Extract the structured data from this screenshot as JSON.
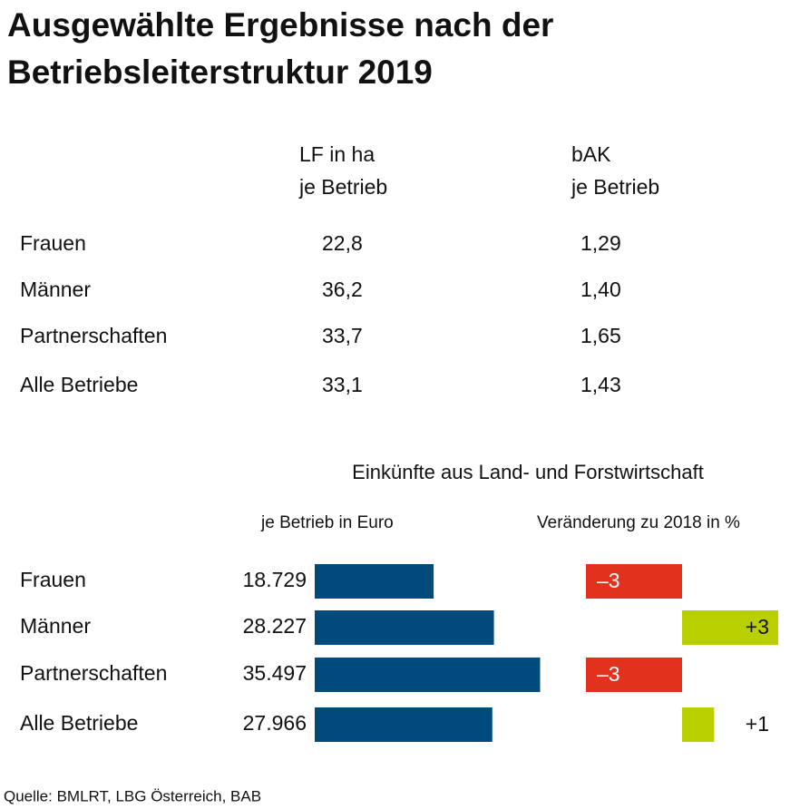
{
  "title": [
    "Ausgewählte Ergebnisse nach der",
    "Betriebsleiterstruktur 2019"
  ],
  "table": {
    "columns": [
      [
        "LF in ha",
        "je Betrieb"
      ],
      [
        "bAK",
        "je Betrieb"
      ]
    ],
    "rows": [
      [
        "Frauen",
        "22,8",
        "1,29"
      ],
      [
        "Männer",
        "36,2",
        "1,40"
      ],
      [
        "Partnerschaften",
        "33,7",
        "1,65"
      ],
      [
        "Alle Betriebe",
        "33,1",
        "1,43"
      ]
    ]
  },
  "section_title": "Einkünfte aus Land- und Forstwirtschaft",
  "chart_data": [
    {
      "type": "bar",
      "title": "je Betrieb in Euro",
      "categories": [
        "Frauen",
        "Männer",
        "Partnerschaften",
        "Alle Betriebe"
      ],
      "values": [
        18729,
        28227,
        35497,
        27966
      ],
      "value_labels": [
        "18.729",
        "28.227",
        "35.497",
        "27.966"
      ],
      "color": "#004b7c",
      "xlim": [
        0,
        40000
      ]
    },
    {
      "type": "bar",
      "title": "Veränderung zu 2018 in %",
      "values": [
        -3,
        3,
        -3,
        1
      ],
      "value_labels": [
        "–3",
        "+3",
        "–3",
        "+1"
      ],
      "positive_color": "#b9cf00",
      "negative_color": "#e2311d",
      "xlim": [
        -3,
        3
      ]
    }
  ],
  "source": "Quelle: BMLRT, LBG Österreich, BAB"
}
